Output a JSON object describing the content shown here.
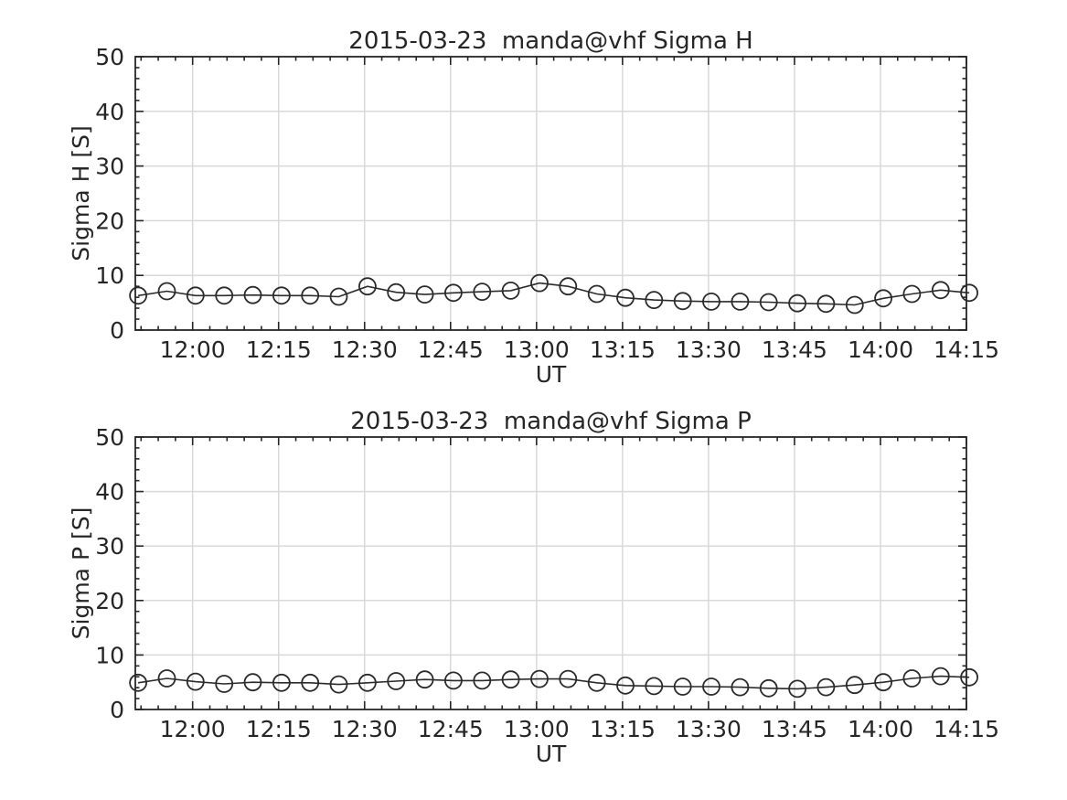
{
  "figure": {
    "background": "#ffffff",
    "axis_color": "#262626",
    "text_color": "#262626",
    "grid_color": "#d9d9d9",
    "line_color": "#2b2b2b",
    "marker": "open-circle"
  },
  "chart_data": [
    {
      "type": "line",
      "title": "2015-03-23  manda@vhf Sigma H",
      "xlabel": "UT",
      "ylabel": "Sigma H [S]",
      "ylim": [
        0,
        50
      ],
      "yticks": [
        0,
        10,
        20,
        30,
        40,
        50
      ],
      "xlim": [
        "11:50",
        "14:15"
      ],
      "xticks": [
        "12:00",
        "12:15",
        "12:30",
        "12:45",
        "13:00",
        "13:15",
        "13:30",
        "13:45",
        "14:00",
        "14:15"
      ],
      "grid": true,
      "legend": "none",
      "marker": "o",
      "x": [
        "11:50",
        "11:55",
        "12:00",
        "12:05",
        "12:10",
        "12:15",
        "12:20",
        "12:25",
        "12:30",
        "12:35",
        "12:40",
        "12:45",
        "12:50",
        "12:55",
        "13:00",
        "13:05",
        "13:10",
        "13:15",
        "13:20",
        "13:25",
        "13:30",
        "13:35",
        "13:40",
        "13:45",
        "13:50",
        "13:55",
        "14:00",
        "14:05",
        "14:10",
        "14:15"
      ],
      "values": [
        6.3,
        7.1,
        6.3,
        6.3,
        6.4,
        6.3,
        6.3,
        6.1,
        8.0,
        6.9,
        6.5,
        6.8,
        7.0,
        7.2,
        8.6,
        8.0,
        6.6,
        5.9,
        5.5,
        5.3,
        5.2,
        5.2,
        5.1,
        4.9,
        4.8,
        4.6,
        5.8,
        6.6,
        7.3,
        6.8
      ]
    },
    {
      "type": "line",
      "title": "2015-03-23  manda@vhf Sigma P",
      "xlabel": "UT",
      "ylabel": "Sigma P [S]",
      "ylim": [
        0,
        50
      ],
      "yticks": [
        0,
        10,
        20,
        30,
        40,
        50
      ],
      "xlim": [
        "11:50",
        "14:15"
      ],
      "xticks": [
        "12:00",
        "12:15",
        "12:30",
        "12:45",
        "13:00",
        "13:15",
        "13:30",
        "13:45",
        "14:00",
        "14:15"
      ],
      "grid": true,
      "legend": "none",
      "marker": "o",
      "x": [
        "11:50",
        "11:55",
        "12:00",
        "12:05",
        "12:10",
        "12:15",
        "12:20",
        "12:25",
        "12:30",
        "12:35",
        "12:40",
        "12:45",
        "12:50",
        "12:55",
        "13:00",
        "13:05",
        "13:10",
        "13:15",
        "13:20",
        "13:25",
        "13:30",
        "13:35",
        "13:40",
        "13:45",
        "13:50",
        "13:55",
        "14:00",
        "14:05",
        "14:10",
        "14:15"
      ],
      "values": [
        4.9,
        5.7,
        5.1,
        4.7,
        5.0,
        4.9,
        4.9,
        4.6,
        4.9,
        5.2,
        5.5,
        5.3,
        5.3,
        5.5,
        5.6,
        5.6,
        4.9,
        4.4,
        4.3,
        4.2,
        4.2,
        4.1,
        3.9,
        3.8,
        4.1,
        4.5,
        5.0,
        5.7,
        6.1,
        5.9
      ]
    }
  ]
}
